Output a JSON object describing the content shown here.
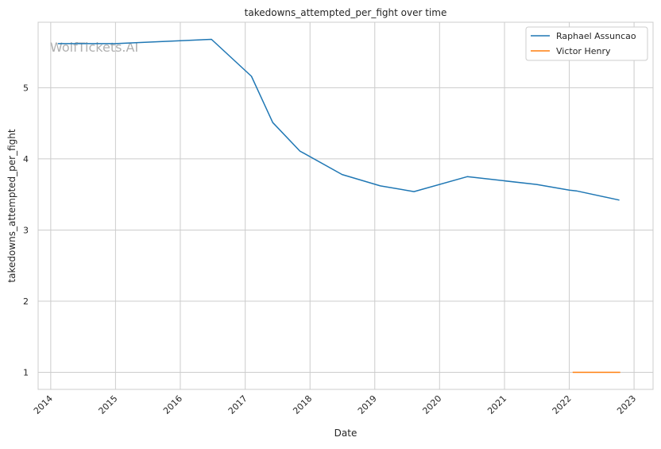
{
  "chart_data": {
    "type": "line",
    "title": "takedowns_attempted_per_fight over time",
    "xlabel": "Date",
    "ylabel": "takedowns_attempted_per_fight",
    "watermark": "WolfTickets.AI",
    "x_ticks": [
      "2014",
      "2015",
      "2016",
      "2017",
      "2018",
      "2019",
      "2020",
      "2021",
      "2022",
      "2023"
    ],
    "y_ticks": [
      "1",
      "2",
      "3",
      "4",
      "5"
    ],
    "xlim": [
      "2013-10-22",
      "2023-04-18"
    ],
    "ylim": [
      0.76,
      5.92
    ],
    "grid": true,
    "legend_position": "top-right",
    "series": [
      {
        "name": "Raphael Assuncao",
        "color": "#1f77b4",
        "points": [
          [
            "2014-02-10",
            5.62
          ],
          [
            "2015-01-01",
            5.62
          ],
          [
            "2016-06-25",
            5.68
          ],
          [
            "2017-02-05",
            5.16
          ],
          [
            "2017-06-05",
            4.51
          ],
          [
            "2017-11-05",
            4.11
          ],
          [
            "2018-07-01",
            3.78
          ],
          [
            "2019-02-01",
            3.62
          ],
          [
            "2019-08-10",
            3.54
          ],
          [
            "2020-06-05",
            3.75
          ],
          [
            "2021-07-01",
            3.64
          ],
          [
            "2022-01-01",
            3.56
          ],
          [
            "2022-02-10",
            3.55
          ],
          [
            "2022-10-10",
            3.42
          ]
        ]
      },
      {
        "name": "Victor Henry",
        "color": "#ff7f0e",
        "points": [
          [
            "2022-01-20",
            1.0
          ],
          [
            "2022-10-15",
            1.0
          ]
        ]
      }
    ]
  }
}
